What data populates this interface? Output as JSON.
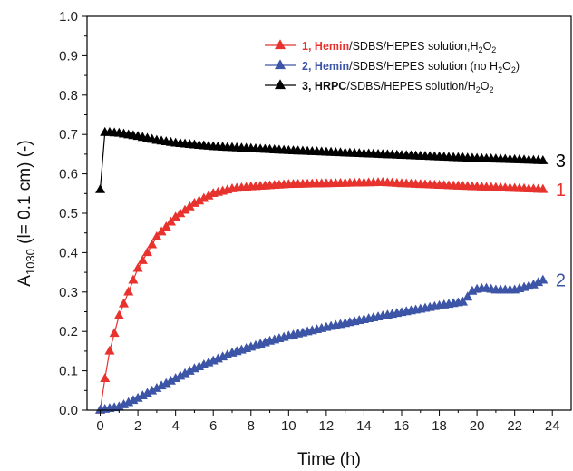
{
  "chart_data": {
    "type": "line",
    "title": "",
    "xlabel": "Time (h)",
    "ylabel": {
      "main": "A",
      "sub": "1030",
      "rest": " (l= 0.1 cm) (-)"
    },
    "xlim": [
      -0.7,
      25
    ],
    "ylim": [
      0,
      1.0
    ],
    "xticks": [
      "0",
      "2",
      "4",
      "6",
      "8",
      "10",
      "12",
      "14",
      "16",
      "18",
      "20",
      "22",
      "24"
    ],
    "yticks": [
      "0.0",
      "0.1",
      "0.2",
      "0.3",
      "0.4",
      "0.5",
      "0.6",
      "0.7",
      "0.8",
      "0.9",
      "1.0"
    ],
    "grid": false,
    "legend_position": "top-right",
    "marker": "triangle-up",
    "series": [
      {
        "id": "1",
        "color": "#e8322d",
        "legend": {
          "num": "1,",
          "bold": "Hemin",
          "rest": "/SDBS/HEPES solution,H",
          "sub": "2",
          "rest2": "O",
          "sub2": "2",
          "tail": ""
        },
        "end_label": "1",
        "anchors": [
          [
            0,
            0.0
          ],
          [
            0.25,
            0.08
          ],
          [
            0.5,
            0.15
          ],
          [
            1,
            0.24
          ],
          [
            2,
            0.36
          ],
          [
            3,
            0.44
          ],
          [
            4,
            0.49
          ],
          [
            5,
            0.525
          ],
          [
            6,
            0.55
          ],
          [
            7,
            0.562
          ],
          [
            8,
            0.567
          ],
          [
            9,
            0.57
          ],
          [
            10,
            0.573
          ],
          [
            12,
            0.575
          ],
          [
            14,
            0.577
          ],
          [
            15,
            0.578
          ],
          [
            16,
            0.575
          ],
          [
            18,
            0.571
          ],
          [
            20,
            0.567
          ],
          [
            22,
            0.563
          ],
          [
            23.7,
            0.56
          ]
        ]
      },
      {
        "id": "2",
        "color": "#3d55a6",
        "legend": {
          "num": "2,",
          "bold": "Hemin",
          "rest": "/SDBS/HEPES solution (no H",
          "sub": "2",
          "rest2": "O",
          "sub2": "2",
          "tail": ")"
        },
        "end_label": "2",
        "anchors": [
          [
            0,
            0.0
          ],
          [
            1,
            0.008
          ],
          [
            2,
            0.03
          ],
          [
            3,
            0.055
          ],
          [
            4,
            0.08
          ],
          [
            5,
            0.105
          ],
          [
            6,
            0.125
          ],
          [
            7,
            0.145
          ],
          [
            8,
            0.16
          ],
          [
            9,
            0.175
          ],
          [
            10,
            0.188
          ],
          [
            12,
            0.21
          ],
          [
            14,
            0.23
          ],
          [
            16,
            0.248
          ],
          [
            18,
            0.265
          ],
          [
            19.3,
            0.275
          ],
          [
            19.8,
            0.305
          ],
          [
            20.4,
            0.31
          ],
          [
            21,
            0.305
          ],
          [
            22,
            0.305
          ],
          [
            23,
            0.318
          ],
          [
            23.7,
            0.335
          ]
        ]
      },
      {
        "id": "3",
        "color": "#000000",
        "legend": {
          "num": "3,",
          "bold": "HRPC",
          "rest": "/SDBS/HEPES solution/H",
          "sub": "2",
          "rest2": "O",
          "sub2": "2",
          "tail": ""
        },
        "end_label": "3",
        "anchors": [
          [
            0,
            0.56
          ],
          [
            0.25,
            0.705
          ],
          [
            0.5,
            0.705
          ],
          [
            1,
            0.703
          ],
          [
            2,
            0.695
          ],
          [
            3,
            0.685
          ],
          [
            4,
            0.678
          ],
          [
            6,
            0.669
          ],
          [
            8,
            0.664
          ],
          [
            10,
            0.659
          ],
          [
            12,
            0.655
          ],
          [
            14,
            0.651
          ],
          [
            16,
            0.647
          ],
          [
            18,
            0.643
          ],
          [
            20,
            0.639
          ],
          [
            22,
            0.636
          ],
          [
            23.7,
            0.633
          ]
        ]
      }
    ]
  }
}
